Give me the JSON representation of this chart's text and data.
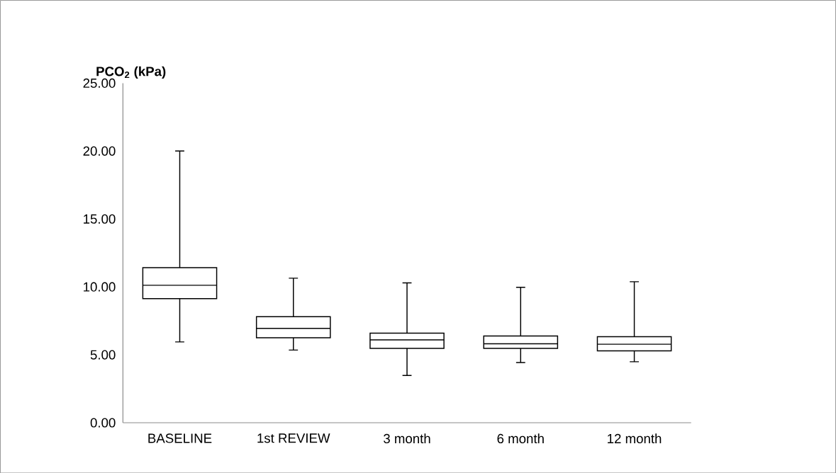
{
  "chart_data": {
    "type": "box",
    "ylabel": "PCO$_{2}$ (kPa)",
    "categories": [
      "BASELINE",
      "1st REVIEW",
      "3 month",
      "6 month",
      "12 month"
    ],
    "boxes": [
      {
        "low": 5.95,
        "q1": 9.14,
        "median": 10.12,
        "q3": 11.42,
        "high": 20.0
      },
      {
        "low": 5.35,
        "q1": 6.26,
        "median": 6.95,
        "q3": 7.81,
        "high": 10.64
      },
      {
        "low": 3.48,
        "q1": 5.47,
        "median": 6.1,
        "q3": 6.59,
        "high": 10.3
      },
      {
        "low": 4.43,
        "q1": 5.47,
        "median": 5.81,
        "q3": 6.38,
        "high": 9.97
      },
      {
        "low": 4.49,
        "q1": 5.29,
        "median": 5.78,
        "q3": 6.33,
        "high": 10.38
      }
    ],
    "color": "#000000",
    "ylim": [
      0,
      25
    ],
    "yticks": [
      {
        "value": 0,
        "label": "0.00"
      },
      {
        "value": 5,
        "label": "5.00"
      },
      {
        "value": 10,
        "label": "10.00"
      },
      {
        "value": 15,
        "label": "15.00"
      },
      {
        "value": 20,
        "label": "20.00"
      },
      {
        "value": 25,
        "label": "25.00"
      }
    ]
  }
}
